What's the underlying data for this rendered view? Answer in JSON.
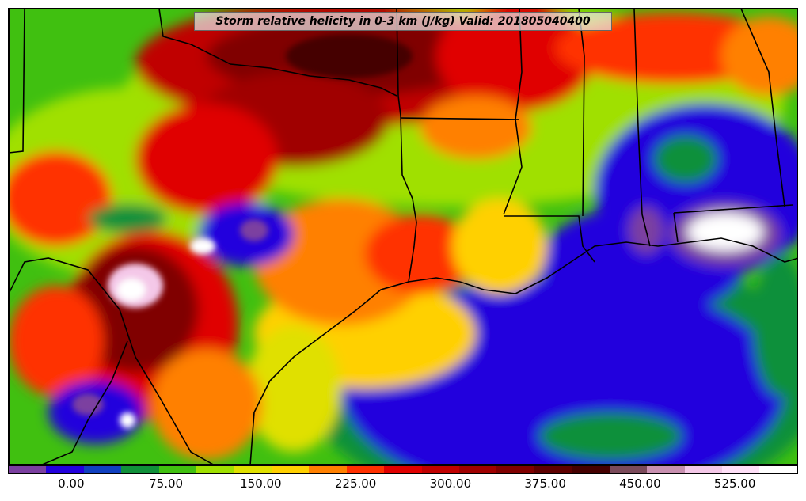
{
  "title": "Storm relative helicity in 0-3 km (J/kg) Valid: 201805040400",
  "colorbar": {
    "colors": [
      "#7b3fa0",
      "#2200dd",
      "#1040c0",
      "#10903a",
      "#40c010",
      "#a0e000",
      "#e0e000",
      "#ffd000",
      "#ff8000",
      "#ff3000",
      "#e00000",
      "#c00000",
      "#a00000",
      "#800000",
      "#5e0000",
      "#450000",
      "#7a4a5a",
      "#c890b0",
      "#f4c8e8",
      "#ffe0f8",
      "#ffffff"
    ],
    "tick_labels": [
      "0.00",
      "75.00",
      "150.00",
      "225.00",
      "300.00",
      "375.00",
      "450.00",
      "525.00"
    ],
    "range": [
      -50,
      575
    ]
  }
}
